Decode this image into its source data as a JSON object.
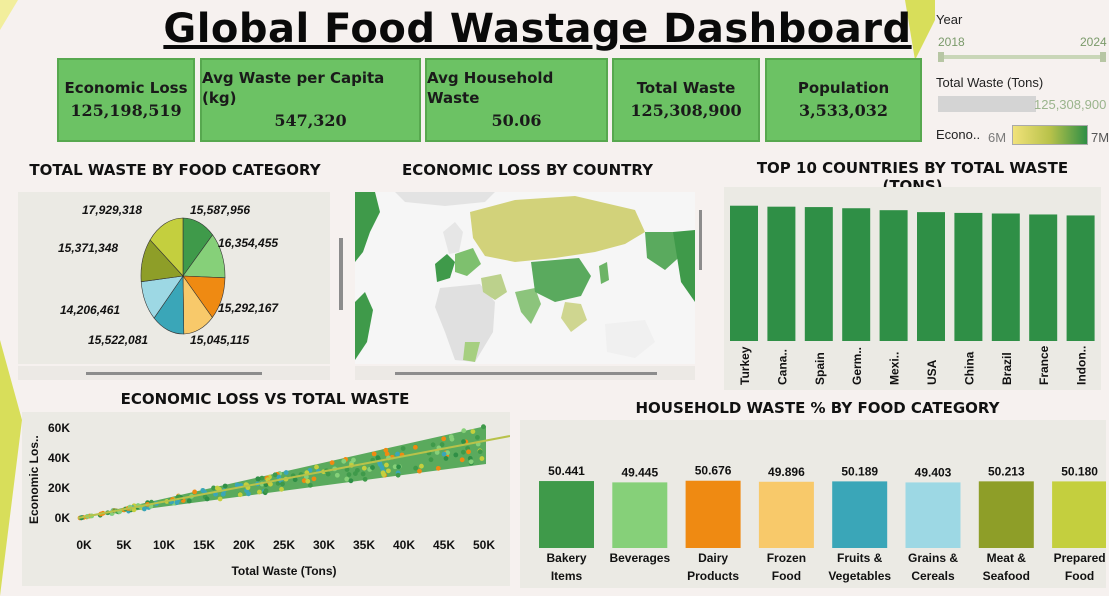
{
  "header": {
    "title": "Global Food Wastage Dashboard"
  },
  "kpis": [
    {
      "label": "Economic Loss",
      "value": "125,198,519"
    },
    {
      "label": "Avg Waste per Capita (kg)",
      "value": "547,320"
    },
    {
      "label": "Avg Household Waste",
      "value": "50.06"
    },
    {
      "label": "Total Waste",
      "value": "125,308,900"
    },
    {
      "label": "Population",
      "value": "3,533,032"
    }
  ],
  "filters": {
    "year": {
      "label": "Year",
      "min": "2018",
      "max": "2024"
    },
    "total_waste": {
      "label": "Total Waste (Tons)",
      "value": "125,308,900"
    },
    "econ": {
      "label": "Econo..",
      "min": "6M",
      "max": "7M"
    }
  },
  "colors": {
    "kpi_bg": "#6cc264",
    "bar_green": "#2f8f46",
    "accent_yellow": "#d6d15a"
  },
  "pie": {
    "title": "TOTAL WASTE BY FOOD CATEGORY",
    "chart_data": {
      "type": "pie",
      "slices": [
        {
          "value": 15587956,
          "label": "15,587,956",
          "color": "#3f9a4a"
        },
        {
          "value": 16354455,
          "label": "16,354,455",
          "color": "#86d079"
        },
        {
          "value": 15292167,
          "label": "15,292,167",
          "color": "#ef8a12"
        },
        {
          "value": 15045115,
          "label": "15,045,115",
          "color": "#f8c96a"
        },
        {
          "value": 15522081,
          "label": "15,522,081",
          "color": "#3aa6b8"
        },
        {
          "value": 14206461,
          "label": "14,206,461",
          "color": "#9dd8e4"
        },
        {
          "value": 15371348,
          "label": "15,371,348",
          "color": "#8e9e28"
        },
        {
          "value": 17929318,
          "label": "17,929,318",
          "color": "#c4cf3e"
        }
      ]
    }
  },
  "map": {
    "title": "ECONOMIC LOSS BY COUNTRY"
  },
  "top10": {
    "title": "TOP 10 COUNTRIES BY TOTAL WASTE (TONS)",
    "chart_data": {
      "type": "bar",
      "categories": [
        "Turkey",
        "Cana..",
        "Spain",
        "Germ..",
        "Mexi..",
        "USA",
        "China",
        "Brazil",
        "France",
        "Indon.."
      ],
      "values": [
        6.95,
        6.9,
        6.88,
        6.82,
        6.72,
        6.62,
        6.58,
        6.55,
        6.5,
        6.45
      ],
      "ylim": [
        0,
        7.5
      ]
    }
  },
  "scatter": {
    "title": "ECONOMIC LOSS VS TOTAL WASTE",
    "chart_data": {
      "type": "scatter",
      "xlabel": "Total Waste (Tons)",
      "ylabel": "Economic Los..",
      "xticks": [
        "0K",
        "5K",
        "10K",
        "15K",
        "20K",
        "25K",
        "30K",
        "35K",
        "40K",
        "45K",
        "50K"
      ],
      "yticks": [
        "0K",
        "20K",
        "40K",
        "60K"
      ],
      "xlim": [
        0,
        50000
      ],
      "ylim": [
        0,
        60000
      ]
    }
  },
  "household": {
    "title": "HOUSEHOLD WASTE % BY FOOD CATEGORY",
    "chart_data": {
      "type": "bar",
      "categories": [
        "Bakery Items",
        "Beverages",
        "Dairy Products",
        "Frozen Food",
        "Fruits & Vegetables",
        "Grains & Cereals",
        "Meat & Seafood",
        "Prepared Food"
      ],
      "values": [
        50.441,
        49.445,
        50.676,
        49.896,
        50.189,
        49.403,
        50.213,
        50.18
      ],
      "labels": [
        "50.441",
        "49.445",
        "50.676",
        "49.896",
        "50.189",
        "49.403",
        "50.213",
        "50.180"
      ],
      "colors": [
        "#3f9a4a",
        "#86d079",
        "#ef8a12",
        "#f8c96a",
        "#3aa6b8",
        "#9dd8e4",
        "#8e9e28",
        "#c4cf3e"
      ]
    }
  }
}
